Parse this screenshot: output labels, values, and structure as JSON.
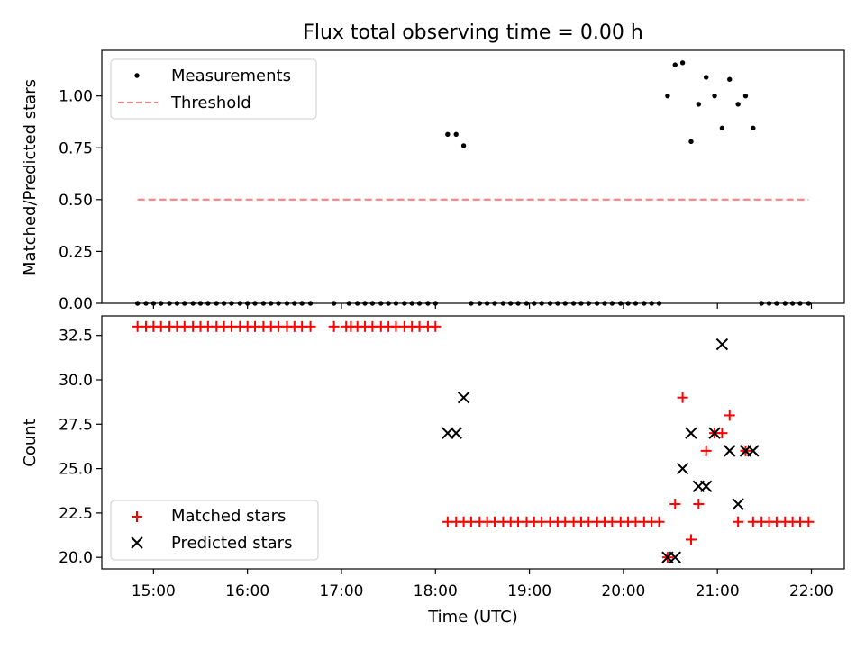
{
  "chart_data": [
    {
      "type": "scatter",
      "title": "Flux total observing time = 0.00 h",
      "xlabel": "",
      "ylabel": "Matched/Predicted stars",
      "ylim": [
        0,
        1.22
      ],
      "yticks": [
        0,
        0.25,
        0.5,
        0.75,
        1.0
      ],
      "ytick_labels": [
        "0.00",
        "0.25",
        "0.50",
        "0.75",
        "1.00"
      ],
      "xlim": [
        14.45,
        22.35
      ],
      "legend": {
        "position": "upper left",
        "entries": [
          "Measurements",
          "Threshold"
        ]
      },
      "series": [
        {
          "name": "Measurements",
          "style": "dot",
          "color": "#000000",
          "points": [
            [
              14.83,
              0
            ],
            [
              14.92,
              0
            ],
            [
              15.0,
              0
            ],
            [
              15.08,
              0
            ],
            [
              15.17,
              0
            ],
            [
              15.25,
              0
            ],
            [
              15.33,
              0
            ],
            [
              15.42,
              0
            ],
            [
              15.5,
              0
            ],
            [
              15.58,
              0
            ],
            [
              15.67,
              0
            ],
            [
              15.75,
              0
            ],
            [
              15.83,
              0
            ],
            [
              15.92,
              0
            ],
            [
              16.0,
              0
            ],
            [
              16.08,
              0
            ],
            [
              16.17,
              0
            ],
            [
              16.25,
              0
            ],
            [
              16.33,
              0
            ],
            [
              16.42,
              0
            ],
            [
              16.5,
              0
            ],
            [
              16.58,
              0
            ],
            [
              16.67,
              0
            ],
            [
              16.92,
              0
            ],
            [
              17.08,
              0
            ],
            [
              17.17,
              0
            ],
            [
              17.25,
              0
            ],
            [
              17.33,
              0
            ],
            [
              17.42,
              0
            ],
            [
              17.5,
              0
            ],
            [
              17.58,
              0
            ],
            [
              17.67,
              0
            ],
            [
              17.75,
              0
            ],
            [
              17.83,
              0
            ],
            [
              17.92,
              0
            ],
            [
              18.0,
              0
            ],
            [
              18.13,
              0.815
            ],
            [
              18.22,
              0.815
            ],
            [
              18.3,
              0.76
            ],
            [
              18.38,
              0
            ],
            [
              18.47,
              0
            ],
            [
              18.55,
              0
            ],
            [
              18.63,
              0
            ],
            [
              18.72,
              0
            ],
            [
              18.8,
              0
            ],
            [
              18.88,
              0
            ],
            [
              18.97,
              0
            ],
            [
              19.05,
              0
            ],
            [
              19.13,
              0
            ],
            [
              19.22,
              0
            ],
            [
              19.3,
              0
            ],
            [
              19.38,
              0
            ],
            [
              19.47,
              0
            ],
            [
              19.55,
              0
            ],
            [
              19.63,
              0
            ],
            [
              19.72,
              0
            ],
            [
              19.8,
              0
            ],
            [
              19.88,
              0
            ],
            [
              19.97,
              0
            ],
            [
              20.05,
              0
            ],
            [
              20.13,
              0
            ],
            [
              20.22,
              0
            ],
            [
              20.3,
              0
            ],
            [
              20.38,
              0
            ],
            [
              20.47,
              1.0
            ],
            [
              20.55,
              1.15
            ],
            [
              20.63,
              1.16
            ],
            [
              20.72,
              0.78
            ],
            [
              20.8,
              0.96
            ],
            [
              20.88,
              1.09
            ],
            [
              20.97,
              1.0
            ],
            [
              21.05,
              0.845
            ],
            [
              21.13,
              1.08
            ],
            [
              21.22,
              0.96
            ],
            [
              21.3,
              1.0
            ],
            [
              21.38,
              0.845
            ],
            [
              21.47,
              0
            ],
            [
              21.55,
              0
            ],
            [
              21.63,
              0
            ],
            [
              21.72,
              0
            ],
            [
              21.8,
              0
            ],
            [
              21.88,
              0
            ],
            [
              21.97,
              0
            ]
          ]
        },
        {
          "name": "Threshold",
          "style": "dashed-line",
          "color": "#ff7f7f",
          "points": [
            [
              14.83,
              0.5
            ],
            [
              21.97,
              0.5
            ]
          ]
        }
      ]
    },
    {
      "type": "scatter",
      "title": "",
      "xlabel": "Time (UTC)",
      "ylabel": "Count",
      "ylim": [
        19.35,
        33.6
      ],
      "yticks": [
        20.0,
        22.5,
        25.0,
        27.5,
        30.0,
        32.5
      ],
      "ytick_labels": [
        "20.0",
        "22.5",
        "25.0",
        "27.5",
        "30.0",
        "32.5"
      ],
      "xlim": [
        14.45,
        22.35
      ],
      "xticks": [
        15,
        16,
        17,
        18,
        19,
        20,
        21,
        22
      ],
      "xtick_labels": [
        "15:00",
        "16:00",
        "17:00",
        "18:00",
        "19:00",
        "20:00",
        "21:00",
        "22:00"
      ],
      "legend": {
        "position": "lower left",
        "entries": [
          "Matched stars",
          "Predicted stars"
        ]
      },
      "series": [
        {
          "name": "Matched stars",
          "style": "plus",
          "color": "#ff0000",
          "points": [
            [
              14.83,
              33
            ],
            [
              14.92,
              33
            ],
            [
              15.0,
              33
            ],
            [
              15.08,
              33
            ],
            [
              15.17,
              33
            ],
            [
              15.25,
              33
            ],
            [
              15.33,
              33
            ],
            [
              15.42,
              33
            ],
            [
              15.5,
              33
            ],
            [
              15.58,
              33
            ],
            [
              15.67,
              33
            ],
            [
              15.75,
              33
            ],
            [
              15.83,
              33
            ],
            [
              15.92,
              33
            ],
            [
              16.0,
              33
            ],
            [
              16.08,
              33
            ],
            [
              16.17,
              33
            ],
            [
              16.25,
              33
            ],
            [
              16.33,
              33
            ],
            [
              16.42,
              33
            ],
            [
              16.5,
              33
            ],
            [
              16.58,
              33
            ],
            [
              16.67,
              33
            ],
            [
              16.92,
              33
            ],
            [
              17.05,
              33
            ],
            [
              17.1,
              33
            ],
            [
              17.17,
              33
            ],
            [
              17.25,
              33
            ],
            [
              17.33,
              33
            ],
            [
              17.42,
              33
            ],
            [
              17.5,
              33
            ],
            [
              17.58,
              33
            ],
            [
              17.67,
              33
            ],
            [
              17.75,
              33
            ],
            [
              17.83,
              33
            ],
            [
              17.92,
              33
            ],
            [
              18.0,
              33
            ],
            [
              18.13,
              22
            ],
            [
              18.22,
              22
            ],
            [
              18.3,
              22
            ],
            [
              18.38,
              22
            ],
            [
              18.47,
              22
            ],
            [
              18.55,
              22
            ],
            [
              18.63,
              22
            ],
            [
              18.72,
              22
            ],
            [
              18.8,
              22
            ],
            [
              18.88,
              22
            ],
            [
              18.97,
              22
            ],
            [
              19.05,
              22
            ],
            [
              19.13,
              22
            ],
            [
              19.22,
              22
            ],
            [
              19.3,
              22
            ],
            [
              19.38,
              22
            ],
            [
              19.47,
              22
            ],
            [
              19.55,
              22
            ],
            [
              19.63,
              22
            ],
            [
              19.72,
              22
            ],
            [
              19.8,
              22
            ],
            [
              19.88,
              22
            ],
            [
              19.97,
              22
            ],
            [
              20.05,
              22
            ],
            [
              20.13,
              22
            ],
            [
              20.22,
              22
            ],
            [
              20.3,
              22
            ],
            [
              20.38,
              22
            ],
            [
              20.47,
              20
            ],
            [
              20.55,
              23
            ],
            [
              20.63,
              29
            ],
            [
              20.72,
              21
            ],
            [
              20.8,
              23
            ],
            [
              20.88,
              26
            ],
            [
              20.97,
              27
            ],
            [
              21.05,
              27
            ],
            [
              21.13,
              28
            ],
            [
              21.22,
              22
            ],
            [
              21.3,
              26
            ],
            [
              21.38,
              22
            ],
            [
              21.47,
              22
            ],
            [
              21.55,
              22
            ],
            [
              21.63,
              22
            ],
            [
              21.72,
              22
            ],
            [
              21.8,
              22
            ],
            [
              21.88,
              22
            ],
            [
              21.97,
              22
            ]
          ]
        },
        {
          "name": "Predicted stars",
          "style": "x",
          "color": "#000000",
          "points": [
            [
              18.13,
              27
            ],
            [
              18.22,
              27
            ],
            [
              18.3,
              29
            ],
            [
              20.47,
              20
            ],
            [
              20.55,
              20
            ],
            [
              20.63,
              25
            ],
            [
              20.72,
              27
            ],
            [
              20.8,
              24
            ],
            [
              20.88,
              24
            ],
            [
              20.97,
              27
            ],
            [
              21.05,
              32
            ],
            [
              21.13,
              26
            ],
            [
              21.22,
              23
            ],
            [
              21.3,
              26
            ],
            [
              21.38,
              26
            ]
          ]
        }
      ]
    }
  ]
}
